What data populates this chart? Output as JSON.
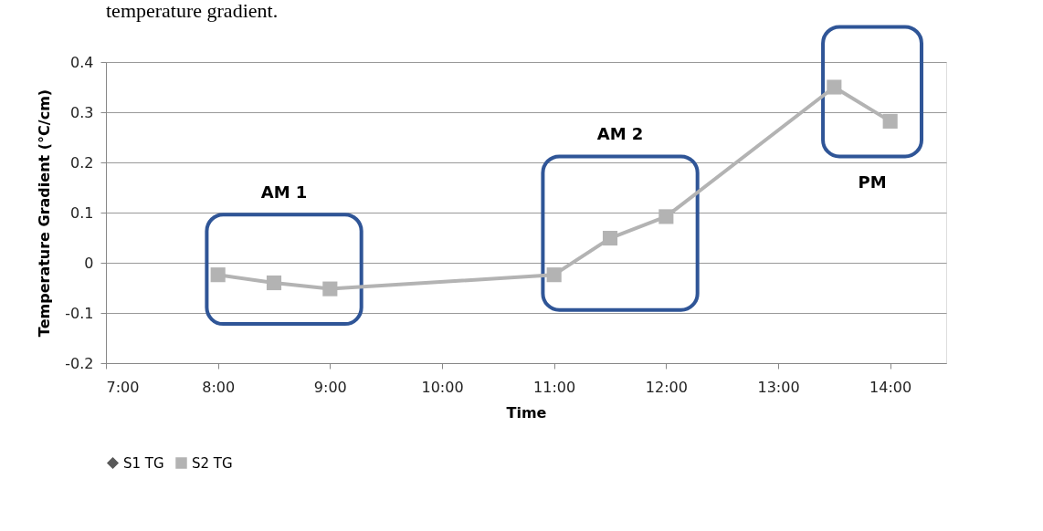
{
  "chart_data": {
    "type": "line",
    "annotations": [
      "temperature gradient.",
      "AM 1",
      "AM 2",
      "PM"
    ],
    "xlabel": "Time",
    "ylabel": "Temperature Gradient (°C/cm)",
    "x": [
      8,
      8.5,
      9,
      11,
      11.5,
      12,
      13.5,
      14
    ],
    "series": [
      {
        "name": "S1 TG",
        "color": "#595959",
        "marker": "diamond",
        "values": [
          null,
          null,
          null,
          null,
          null,
          null,
          null,
          null
        ]
      },
      {
        "name": "S2 TG",
        "color": "#b3b3b3",
        "marker": "square",
        "values": [
          -0.024,
          -0.04,
          -0.052,
          -0.024,
          0.049,
          0.092,
          0.35,
          0.282
        ]
      }
    ],
    "xlim": [
      7,
      14.5
    ],
    "xticks": [
      {
        "value": 7,
        "label": "7:00"
      },
      {
        "value": 8,
        "label": "8:00"
      },
      {
        "value": 9,
        "label": "9:00"
      },
      {
        "value": 10,
        "label": "10:00"
      },
      {
        "value": 11,
        "label": "11:00"
      },
      {
        "value": 12,
        "label": "12:00"
      },
      {
        "value": 13,
        "label": "13:00"
      },
      {
        "value": 14,
        "label": "14:00"
      }
    ],
    "ylim": [
      -0.2,
      0.4
    ],
    "yticks": [
      -0.2,
      -0.1,
      0,
      0.1,
      0.2,
      0.3,
      0.4
    ],
    "grid": "y",
    "legend": "bottom"
  }
}
